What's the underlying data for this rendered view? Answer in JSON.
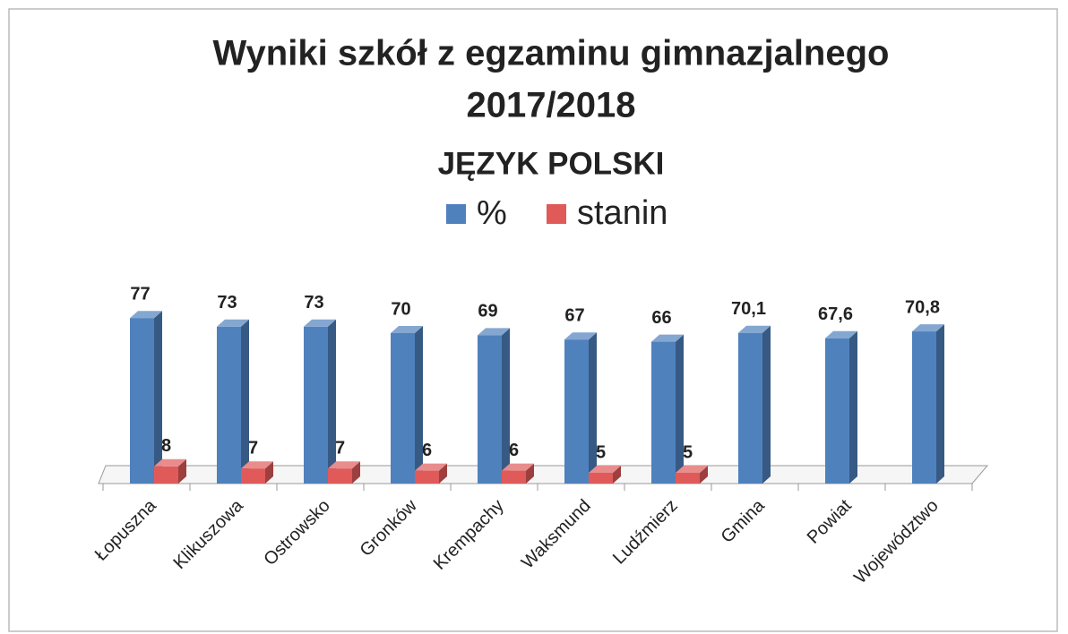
{
  "chart_data": {
    "type": "bar3d",
    "title": [
      "Wyniki szkół z egzaminu gimnazjalnego",
      "2017/2018",
      "JĘZYK POLSKI"
    ],
    "categories": [
      "Łopuszna",
      "Klikuszowa",
      "Ostrowsko",
      "Gronków",
      "Krempachy",
      "Waksmund",
      "Ludźmierz",
      "Gmina",
      "Powiat",
      "Województwo"
    ],
    "series": [
      {
        "name": "%",
        "color": "#4f81bd",
        "values": [
          77,
          73,
          73,
          70,
          69,
          67,
          66,
          70.1,
          67.6,
          70.8
        ],
        "value_labels": [
          "77",
          "73",
          "73",
          "70",
          "69",
          "67",
          "66",
          "70,1",
          "67,6",
          "70,8"
        ]
      },
      {
        "name": "stanin",
        "color": "#e05a5a",
        "values": [
          8,
          7,
          7,
          6,
          6,
          5,
          5,
          null,
          null,
          null
        ]
      }
    ],
    "legend": "top"
  }
}
